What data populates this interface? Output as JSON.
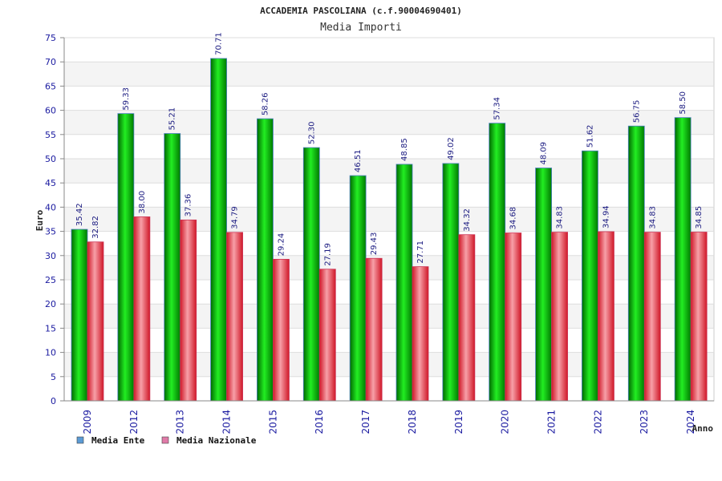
{
  "chart_data": {
    "type": "bar",
    "title": "ACCADEMIA PASCOLIANA (c.f.90004690401)",
    "subtitle": "Media Importi",
    "xlabel": "Anno",
    "ylabel": "Euro",
    "ylim": [
      0,
      75
    ],
    "ytick_step": 5,
    "grid": true,
    "legend_position": "bottom-left",
    "categories": [
      "2009",
      "2012",
      "2013",
      "2014",
      "2015",
      "2016",
      "2017",
      "2018",
      "2019",
      "2020",
      "2021",
      "2022",
      "2023",
      "2024"
    ],
    "series": [
      {
        "name": "Media Ente",
        "color": "#00b000",
        "legend_color": "#5b9bd5",
        "values": [
          35.42,
          59.33,
          55.21,
          70.71,
          58.26,
          52.3,
          46.51,
          48.85,
          49.02,
          57.34,
          48.09,
          51.62,
          56.75,
          58.5
        ],
        "labels": [
          "35.42",
          "59.33",
          "55.21",
          "70.71",
          "58.26",
          "52.30",
          "46.51",
          "48.85",
          "49.02",
          "57.34",
          "48.09",
          "51.62",
          "56.75",
          "58.50"
        ]
      },
      {
        "name": "Media Nazionale",
        "color": "#e02030",
        "legend_color": "#e07aa8",
        "values": [
          32.82,
          38.0,
          37.36,
          34.79,
          29.24,
          27.19,
          29.43,
          27.71,
          34.32,
          34.68,
          34.83,
          34.94,
          34.83,
          34.85
        ],
        "labels": [
          "32.82",
          "38.00",
          "37.36",
          "34.79",
          "29.24",
          "27.19",
          "29.43",
          "27.71",
          "34.32",
          "34.68",
          "34.83",
          "34.94",
          "34.83",
          "34.85"
        ]
      }
    ]
  }
}
